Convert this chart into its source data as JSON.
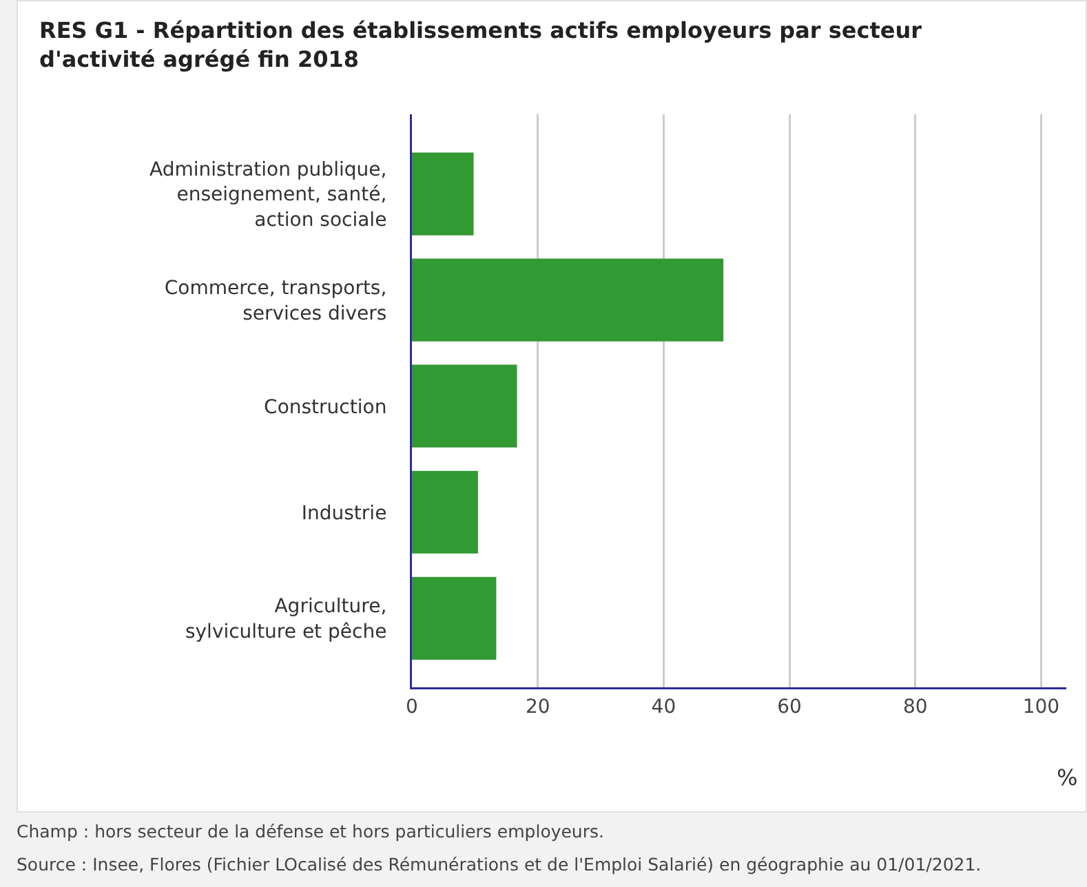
{
  "chart_data": {
    "type": "bar",
    "orientation": "horizontal",
    "title": "RES G1 - Répartition des établissements actifs employeurs par secteur\nd'activité agrégé fin 2018",
    "categories": [
      "Administration publique,\nenseignement, santé,\naction sociale",
      "Commerce, transports,\nservices divers",
      "Construction",
      "Industrie",
      "Agriculture,\nsylviculture et pêche"
    ],
    "values": [
      9.8,
      49.5,
      16.7,
      10.5,
      13.4
    ],
    "color": "#339933",
    "xlabel": "%",
    "xlim": [
      0,
      104
    ],
    "xticks": [
      0,
      20,
      40,
      60,
      80,
      100
    ],
    "grid": "x",
    "annotations": [
      "Champ : hors secteur de la défense et hors particuliers employeurs.",
      "Source : Insee, Flores (Fichier LOcalisé des Rémunérations et de l'Emploi Salarié) en géographie au 01/01/2021."
    ]
  }
}
